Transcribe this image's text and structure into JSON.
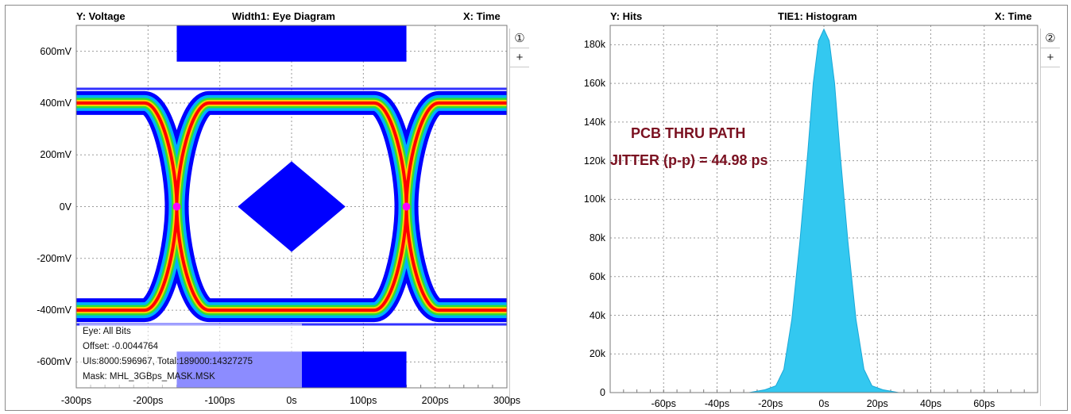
{
  "chart_data": [
    {
      "type": "eye_diagram",
      "number_label": "①",
      "title": "Width1: Eye Diagram",
      "y_axis_label": "Y: Voltage",
      "x_axis_label": "X: Time",
      "xlim": [
        -300,
        300
      ],
      "ylim": [
        -700,
        700
      ],
      "x_unit": "ps",
      "y_unit": "mV",
      "x_ticks": [
        "-300ps",
        "-200ps",
        "-100ps",
        "0s",
        "100ps",
        "200ps",
        "300ps"
      ],
      "y_ticks": [
        "600mV",
        "400mV",
        "200mV",
        "0V",
        "-200mV",
        "-400mV",
        "-600mV"
      ],
      "high_level_mV": 400,
      "low_level_mV": -400,
      "crossing_points_ps": [
        -160,
        160
      ],
      "crossing_level_mV": 0,
      "mask": {
        "center_polygon": [
          [
            -75,
            0
          ],
          [
            0,
            175
          ],
          [
            75,
            0
          ],
          [
            0,
            -175
          ]
        ],
        "top_bar": {
          "x": [
            -160,
            160
          ],
          "y": [
            560,
            700
          ]
        },
        "bottom_bar": {
          "x": [
            -160,
            160
          ],
          "y": [
            -700,
            -560
          ]
        }
      },
      "info": [
        "Eye: All Bits",
        "Offset: -0.0044764",
        "UIs:8000:596967, Total:189000:14327275",
        "Mask: MHL_3GBps_MASK.MSK"
      ],
      "grid": true,
      "colors": {
        "mask": "#0000ff",
        "hot": "#ff0000",
        "warm": "#ffd000",
        "mid": "#30e030",
        "cool": "#00b0ff",
        "cold": "#0000ff",
        "peak": "#ff00ff"
      }
    },
    {
      "type": "area",
      "number_label": "②",
      "title": "TIE1: Histogram",
      "y_axis_label": "Y: Hits",
      "x_axis_label": "X: Time",
      "xlim": [
        -80,
        80
      ],
      "ylim": [
        0,
        190000
      ],
      "x_ticks": [
        "-60ps",
        "-40ps",
        "-20ps",
        "0s",
        "20ps",
        "40ps",
        "60ps"
      ],
      "y_ticks": [
        "180k",
        "160k",
        "140k",
        "120k",
        "100k",
        "80k",
        "60k",
        "40k",
        "20k",
        "0"
      ],
      "x": [
        -28,
        -22,
        -18,
        -15,
        -12,
        -9,
        -6,
        -4,
        -2,
        0,
        2,
        4,
        6,
        9,
        12,
        15,
        18,
        22,
        28
      ],
      "y": [
        0,
        1500,
        3500,
        12000,
        38000,
        78000,
        125000,
        160000,
        182000,
        188000,
        182000,
        160000,
        125000,
        78000,
        38000,
        12000,
        3500,
        1500,
        0
      ],
      "annotations": [
        "PCB THRU PATH",
        "JITTER (p-p) = 44.98 ps"
      ],
      "grid": true,
      "colors": {
        "fill": "#33c8f0"
      }
    }
  ],
  "controls": {
    "add_label": "+"
  }
}
